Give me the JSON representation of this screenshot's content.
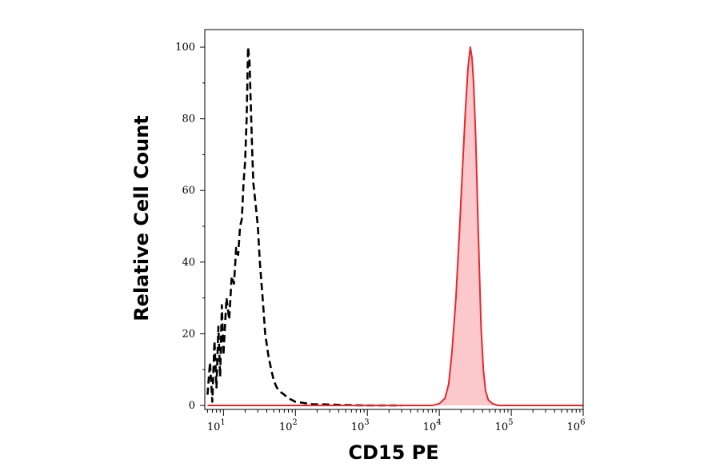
{
  "chart_data": {
    "type": "area",
    "title": "",
    "xlabel": "CD15 PE",
    "ylabel": "Relative Cell Count",
    "x_scale": "log",
    "xlim": [
      5.5,
      1000000
    ],
    "ylim": [
      0,
      100
    ],
    "x_ticks": [
      {
        "value": 10,
        "base": "10",
        "exp": "1"
      },
      {
        "value": 100,
        "base": "10",
        "exp": "2"
      },
      {
        "value": 1000,
        "base": "10",
        "exp": "3"
      },
      {
        "value": 10000,
        "base": "10",
        "exp": "4"
      },
      {
        "value": 100000,
        "base": "10",
        "exp": "5"
      },
      {
        "value": 1000000,
        "base": "10",
        "exp": "6"
      }
    ],
    "y_ticks": [
      0,
      20,
      40,
      60,
      80,
      100
    ],
    "y_tick_labels": [
      "0",
      "20",
      "40",
      "60",
      "80",
      "100"
    ],
    "grid": false,
    "legend": "none",
    "series": [
      {
        "style": "dashed-line",
        "color": "#000000",
        "x": [
          6,
          6.5,
          7,
          7.5,
          8,
          8.5,
          9,
          9.5,
          10,
          11,
          12,
          13,
          14,
          15,
          16,
          17,
          18,
          19,
          20,
          21,
          22,
          23,
          24,
          25,
          26,
          28,
          30,
          32,
          35,
          38,
          42,
          46,
          50,
          55,
          60,
          70,
          80,
          90,
          100,
          120,
          150,
          180,
          250,
          350,
          500,
          1000,
          3000
        ],
        "y": [
          3,
          12,
          1,
          18,
          5,
          22,
          8,
          28,
          14,
          30,
          24,
          36,
          34,
          44,
          42,
          50,
          52,
          62,
          68,
          80,
          100,
          96,
          84,
          72,
          62,
          56,
          50,
          40,
          30,
          20,
          14,
          10,
          7,
          5,
          4,
          3,
          2,
          1.5,
          1,
          0.8,
          0.5,
          0.3,
          0.3,
          0.2,
          0.1,
          0,
          0
        ]
      },
      {
        "style": "filled-area",
        "color": "#e8272c",
        "fill": "#fbc9cb",
        "x": [
          6,
          100,
          1000,
          8000,
          10000,
          12000,
          13500,
          15000,
          17000,
          19000,
          21000,
          23000,
          25000,
          27000,
          28500,
          30000,
          32000,
          34000,
          36000,
          38000,
          41000,
          44000,
          48000,
          55000,
          65000,
          100000,
          1000000
        ],
        "y": [
          0,
          0,
          0,
          0,
          0.5,
          2,
          6,
          15,
          30,
          48,
          66,
          82,
          94,
          100,
          97,
          90,
          75,
          56,
          38,
          22,
          10,
          4,
          1.5,
          0.5,
          0,
          0,
          0
        ]
      }
    ]
  }
}
